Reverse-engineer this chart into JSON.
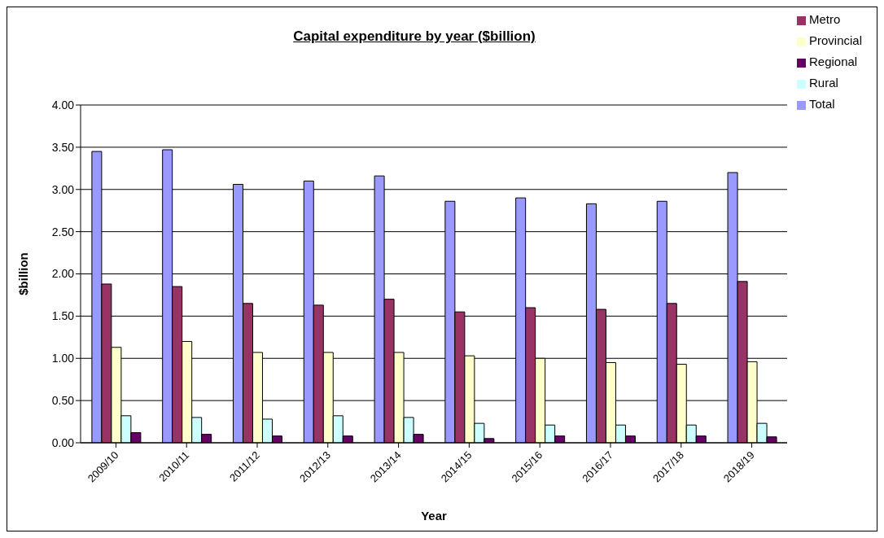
{
  "chart_data": {
    "type": "bar",
    "title": "Capital expenditure by year ($billion)",
    "xlabel": "Year",
    "ylabel": "$billion",
    "categories": [
      "2009/10",
      "2010/11",
      "2011/12",
      "2012/13",
      "2013/14",
      "2014/15",
      "2015/16",
      "2016/17",
      "2017/18",
      "2018/19"
    ],
    "series": [
      {
        "name": "Total",
        "color": "#9999ff",
        "values": [
          3.45,
          3.47,
          3.06,
          3.1,
          3.16,
          2.86,
          2.9,
          2.83,
          2.86,
          3.2
        ]
      },
      {
        "name": "Metro",
        "color": "#993366",
        "values": [
          1.88,
          1.85,
          1.65,
          1.63,
          1.7,
          1.55,
          1.6,
          1.58,
          1.65,
          1.91
        ]
      },
      {
        "name": "Provincial",
        "color": "#ffffcc",
        "values": [
          1.13,
          1.2,
          1.07,
          1.07,
          1.07,
          1.03,
          1.0,
          0.95,
          0.93,
          0.96
        ]
      },
      {
        "name": "Rural",
        "color": "#ccffff",
        "values": [
          0.32,
          0.3,
          0.28,
          0.32,
          0.3,
          0.23,
          0.21,
          0.21,
          0.21,
          0.23
        ]
      },
      {
        "name": "Regional",
        "color": "#660066",
        "values": [
          0.12,
          0.1,
          0.08,
          0.08,
          0.1,
          0.05,
          0.08,
          0.08,
          0.08,
          0.07
        ]
      }
    ],
    "ylim": [
      0,
      4
    ],
    "yticks": [
      {
        "value": 0,
        "label": "0.00"
      },
      {
        "value": 0.5,
        "label": "0.50"
      },
      {
        "value": 1,
        "label": "1.00"
      },
      {
        "value": 1.5,
        "label": "1.50"
      },
      {
        "value": 2,
        "label": "2.00"
      },
      {
        "value": 2.5,
        "label": "2.50"
      },
      {
        "value": 3,
        "label": "3.00"
      },
      {
        "value": 3.5,
        "label": "3.50"
      },
      {
        "value": 4,
        "label": "4.00"
      }
    ],
    "grid": "y",
    "legend": "top right"
  }
}
